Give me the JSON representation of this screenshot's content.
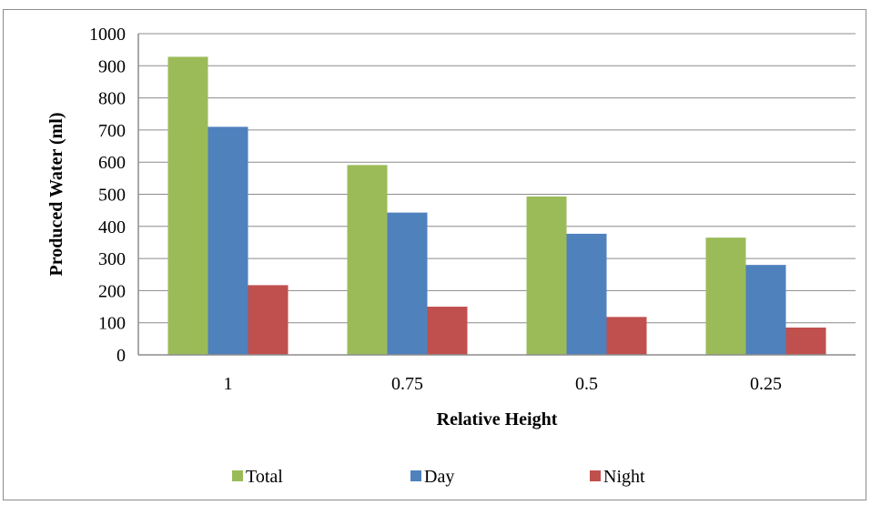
{
  "chart_data": {
    "type": "bar",
    "categories": [
      "1",
      "0.75",
      "0.5",
      "0.25"
    ],
    "series": [
      {
        "name": "Total",
        "color": "#9bbb59",
        "values": [
          928,
          591,
          493,
          365
        ]
      },
      {
        "name": "Day",
        "color": "#4f81bd",
        "values": [
          710,
          443,
          377,
          280
        ]
      },
      {
        "name": "Night",
        "color": "#c0504d",
        "values": [
          217,
          150,
          118,
          85
        ]
      }
    ],
    "xlabel": "Relative Height",
    "ylabel": "Produced Water (ml)",
    "ylim": [
      0,
      1000
    ],
    "yticks": [
      "0",
      "100",
      "200",
      "300",
      "400",
      "500",
      "600",
      "700",
      "800",
      "900",
      "1000"
    ],
    "grid": true,
    "legend": "bottom"
  }
}
